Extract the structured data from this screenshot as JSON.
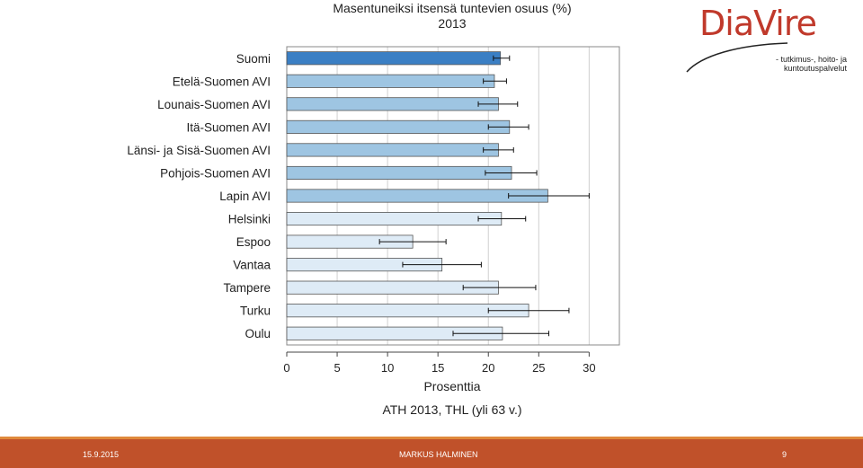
{
  "chart_data": {
    "type": "bar",
    "orientation": "horizontal",
    "title": "Masentuneiksi itsensä tuntevien osuus (%)",
    "subtitle": "2013",
    "xlabel": "Prosenttia",
    "ylabel": "",
    "source_note": "ATH 2013, THL (yli 63 v.)",
    "xlim": [
      0,
      33
    ],
    "xticks": [
      "0",
      "5",
      "10",
      "15",
      "20",
      "25",
      "30"
    ],
    "grid": true,
    "categories": [
      "Suomi",
      "Etelä-Suomen AVI",
      "Lounais-Suomen AVI",
      "Itä-Suomen AVI",
      "Länsi- ja Sisä-Suomen AVI",
      "Pohjois-Suomen AVI",
      "Lapin AVI",
      "Helsinki",
      "Espoo",
      "Vantaa",
      "Tampere",
      "Turku",
      "Oulu"
    ],
    "values": [
      21.2,
      20.6,
      21.0,
      22.1,
      21.0,
      22.3,
      25.9,
      21.3,
      12.5,
      15.4,
      21.0,
      24.0,
      21.4
    ],
    "ci_low": [
      20.5,
      19.5,
      19.0,
      20.0,
      19.5,
      19.7,
      22.0,
      19.0,
      9.2,
      11.5,
      17.5,
      20.0,
      16.5
    ],
    "ci_high": [
      22.1,
      21.8,
      22.9,
      24.0,
      22.5,
      24.8,
      30.0,
      23.7,
      15.8,
      19.3,
      24.7,
      28.0,
      26.0
    ],
    "bar_colors": [
      "#3b7fc4",
      "#9ec5e2",
      "#9ec5e2",
      "#9ec5e2",
      "#9ec5e2",
      "#9ec5e2",
      "#9ec5e2",
      "#deebf6",
      "#deebf6",
      "#deebf6",
      "#deebf6",
      "#deebf6",
      "#deebf6"
    ]
  },
  "logo": {
    "word": "DiaVire",
    "tagline_1": "- tutkimus-, hoito- ja",
    "tagline_2": "kuntoutuspalvelut",
    "color": "#c0392b"
  },
  "footer": {
    "date": "15.9.2015",
    "author": "MARKUS HALMINEN",
    "page": "9",
    "color": "#c0512a"
  }
}
